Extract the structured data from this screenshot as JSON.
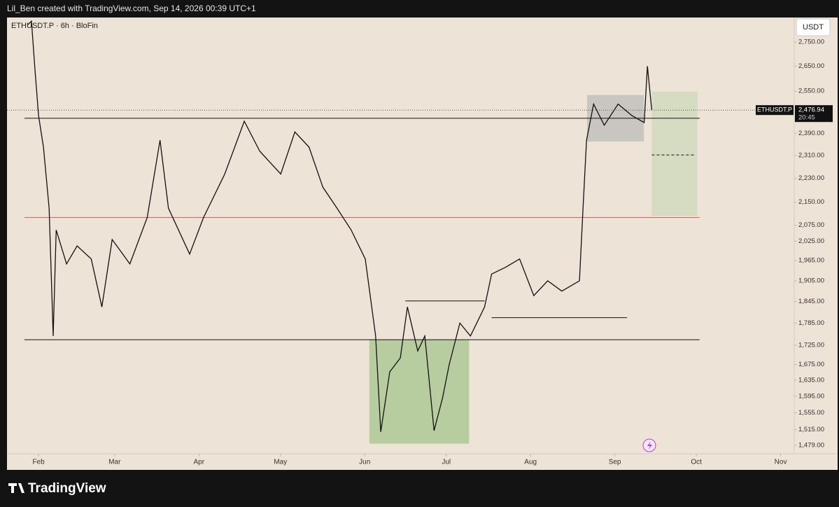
{
  "header": "Lil_Ben created with TradingView.com, Sep 14, 2026 00:39 UTC+1",
  "brand": "TradingView",
  "chart_data": {
    "type": "line",
    "title": "ETHUSDT.P · 6h · BloFin",
    "y_unit": "USDT",
    "log": true,
    "xlim": [
      19.4,
      309
    ],
    "ylim": [
      1460,
      2856
    ],
    "xticks": [
      {
        "value": 31,
        "label": "Feb"
      },
      {
        "value": 59,
        "label": "Mar"
      },
      {
        "value": 90,
        "label": "Apr"
      },
      {
        "value": 120,
        "label": "May"
      },
      {
        "value": 151,
        "label": "Jun"
      },
      {
        "value": 181,
        "label": "Jul"
      },
      {
        "value": 212,
        "label": "Aug"
      },
      {
        "value": 243,
        "label": "Sep"
      },
      {
        "value": 273,
        "label": "Oct"
      },
      {
        "value": 304,
        "label": "Nov"
      }
    ],
    "yticks": [
      {
        "value": 2750,
        "label": "2,750.00"
      },
      {
        "value": 2650,
        "label": "2,650.00"
      },
      {
        "value": 2550,
        "label": "2,550.00"
      },
      {
        "value": 2390,
        "label": "2,390.00"
      },
      {
        "value": 2310,
        "label": "2,310.00"
      },
      {
        "value": 2230,
        "label": "2,230.00"
      },
      {
        "value": 2150,
        "label": "2,150.00"
      },
      {
        "value": 2075,
        "label": "2,075.00"
      },
      {
        "value": 2025,
        "label": "2,025.00"
      },
      {
        "value": 1965,
        "label": "1,965.00"
      },
      {
        "value": 1905,
        "label": "1,905.00"
      },
      {
        "value": 1845,
        "label": "1,845.00"
      },
      {
        "value": 1785,
        "label": "1,785.00"
      },
      {
        "value": 1725,
        "label": "1,725.00"
      },
      {
        "value": 1675,
        "label": "1,675.00"
      },
      {
        "value": 1635,
        "label": "1,635.00"
      },
      {
        "value": 1595,
        "label": "1,595.00"
      },
      {
        "value": 1555,
        "label": "1,555.00"
      },
      {
        "value": 1515,
        "label": "1,515.00"
      },
      {
        "value": 1479,
        "label": "1,479.00"
      }
    ],
    "series": [
      {
        "name": "ETHUSDT.P",
        "color": "#111111",
        "x": [
          27.1,
          28.4,
          29.7,
          31,
          32.8,
          34.9,
          36.4,
          37.5,
          41.3,
          45.2,
          50.4,
          54.3,
          58.1,
          64.6,
          71,
          75.7,
          78.8,
          86.6,
          91.7,
          99.5,
          106.7,
          112.4,
          120.1,
          125.3,
          130.5,
          135.6,
          140.8,
          146,
          151.2,
          155,
          156.9,
          160.2,
          164.1,
          166.7,
          170.5,
          173.1,
          176.5,
          179.6,
          182.1,
          186,
          189.9,
          195.1,
          197.7,
          202.8,
          208,
          213.2,
          218.3,
          223.5,
          230,
          231.3,
          232.6,
          235.2,
          239.1,
          244.2,
          249.3,
          253.8,
          255,
          256.6
        ],
        "values": [
          2825,
          2840,
          2635,
          2456,
          2340,
          2130,
          1750,
          2060,
          1955,
          2010,
          1970,
          1830,
          2030,
          1955,
          2100,
          2365,
          2130,
          1985,
          2100,
          2245,
          2435,
          2325,
          2245,
          2395,
          2340,
          2200,
          2130,
          2060,
          1970,
          1750,
          1510,
          1656,
          1692,
          1830,
          1710,
          1750,
          1513,
          1590,
          1675,
          1785,
          1750,
          1830,
          1925,
          1945,
          1970,
          1862,
          1905,
          1875,
          1905,
          2130,
          2365,
          2500,
          2420,
          2500,
          2456,
          2430,
          2650,
          2477
        ]
      }
    ],
    "current": {
      "value": 2476.94,
      "label": "2,476.94",
      "time": "20:45"
    },
    "levels": [
      {
        "value": 2446,
        "x": [
          25.8,
          274.2
        ],
        "color": "#111111"
      },
      {
        "value": 2100,
        "x": [
          25.8,
          274.2
        ],
        "color": "#e05b5b"
      },
      {
        "value": 1740,
        "x": [
          25.8,
          274.2
        ],
        "color": "#111111"
      },
      {
        "value": 1847,
        "x": [
          165.9,
          195.1
        ],
        "color": "#111111"
      },
      {
        "value": 1800,
        "x": [
          197.7,
          247.5
        ],
        "color": "#111111"
      },
      {
        "value": 2312,
        "x": [
          256.6,
          272.6
        ],
        "color": "#111111",
        "dash": true
      }
    ],
    "zones": [
      {
        "x": [
          152.7,
          189.4
        ],
        "y": [
          1483,
          1740
        ],
        "color": "#b7cda0"
      },
      {
        "x": [
          232.8,
          253.7
        ],
        "y": [
          2360,
          2535
        ],
        "color": "#c9c5c0"
      },
      {
        "x": [
          256.6,
          273.4
        ],
        "y": [
          2105,
          2548
        ],
        "color": "#d6dcc2"
      }
    ]
  }
}
